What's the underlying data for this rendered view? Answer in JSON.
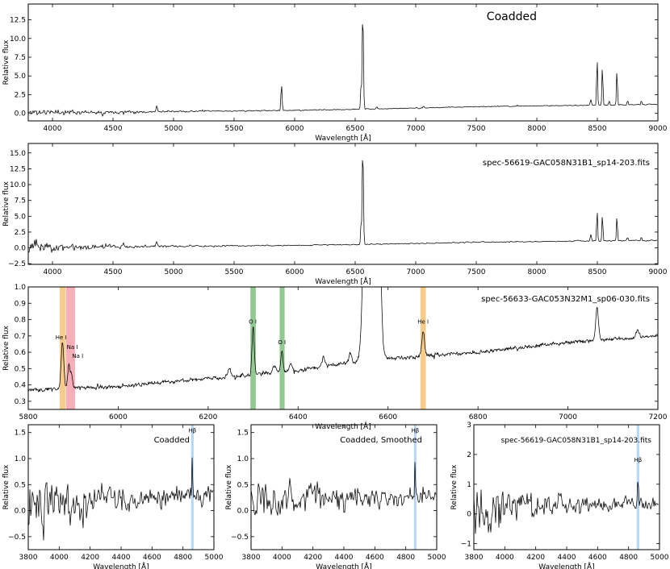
{
  "figure": {
    "background": "#ffffff",
    "line_color": "#000000"
  },
  "chart_data": [
    {
      "id": "p1",
      "type": "line",
      "title": "Coadded",
      "xlabel": "Wavelength [Å]",
      "ylabel": "Relative flux",
      "xlim": [
        3800,
        9000
      ],
      "ylim": [
        -1.0,
        14.6
      ],
      "xticks": [
        4000,
        4500,
        5000,
        5500,
        6000,
        6500,
        7000,
        7500,
        8000,
        8500,
        9000
      ],
      "xtick_labels": [
        "4000",
        "4500",
        "5000",
        "5500",
        "6000",
        "6500",
        "7000",
        "7500",
        "8000",
        "8500",
        "9000"
      ],
      "yticks": [
        0.0,
        2.5,
        5.0,
        7.5,
        10.0,
        12.5
      ],
      "ytick_labels": [
        "0.0",
        "2.5",
        "5.0",
        "7.5",
        "10.0",
        "12.5"
      ],
      "continuum": [
        [
          3800,
          0.15
        ],
        [
          4500,
          0.2
        ],
        [
          5000,
          0.25
        ],
        [
          6000,
          0.4
        ],
        [
          6500,
          0.55
        ],
        [
          7000,
          0.7
        ],
        [
          7500,
          0.9
        ],
        [
          8000,
          1.0
        ],
        [
          8500,
          1.1
        ],
        [
          9000,
          1.2
        ]
      ],
      "noise": [
        [
          3800,
          0.45
        ],
        [
          4200,
          0.3
        ],
        [
          4800,
          0.15
        ],
        [
          5500,
          0.07
        ],
        [
          7000,
          0.05
        ],
        [
          9000,
          0.06
        ]
      ],
      "lines": [
        [
          4861,
          0.8,
          6
        ],
        [
          5890,
          3.2,
          4
        ],
        [
          5896,
          1.5,
          3
        ],
        [
          6563,
          13.5,
          5
        ],
        [
          6548,
          3.0,
          4
        ],
        [
          6678,
          0.3,
          4
        ],
        [
          7065,
          0.3,
          5
        ],
        [
          8446,
          0.8,
          5
        ],
        [
          8498,
          6.5,
          4
        ],
        [
          8542,
          5.3,
          4
        ],
        [
          8598,
          0.6,
          4
        ],
        [
          8662,
          4.8,
          4
        ],
        [
          8750,
          0.6,
          4
        ],
        [
          8863,
          0.6,
          4
        ]
      ],
      "seed": 11,
      "step": 1.0
    },
    {
      "id": "p2",
      "type": "line",
      "title": "spec-56619-GAC058N31B1_sp14-203.fits",
      "xlabel": "Wavelength [Å]",
      "ylabel": "Relative flux",
      "xlim": [
        3800,
        9000
      ],
      "ylim": [
        -2.6,
        16.5
      ],
      "xticks": [
        4000,
        4500,
        5000,
        5500,
        6000,
        6500,
        7000,
        7500,
        8000,
        8500,
        9000
      ],
      "xtick_labels": [
        "4000",
        "4500",
        "5000",
        "5500",
        "6000",
        "6500",
        "7000",
        "7500",
        "8000",
        "8500",
        "9000"
      ],
      "yticks": [
        -2.5,
        0.0,
        2.5,
        5.0,
        7.5,
        10.0,
        12.5,
        15.0
      ],
      "ytick_labels": [
        "−2.5",
        "0.0",
        "2.5",
        "5.0",
        "7.5",
        "10.0",
        "12.5",
        "15.0"
      ],
      "continuum": [
        [
          3800,
          0.15
        ],
        [
          4500,
          0.2
        ],
        [
          5000,
          0.25
        ],
        [
          6000,
          0.4
        ],
        [
          6500,
          0.55
        ],
        [
          7000,
          0.7
        ],
        [
          7500,
          0.9
        ],
        [
          8000,
          1.0
        ],
        [
          8500,
          1.1
        ],
        [
          9000,
          1.2
        ]
      ],
      "noise": [
        [
          3800,
          1.3
        ],
        [
          4000,
          0.8
        ],
        [
          4500,
          0.3
        ],
        [
          5000,
          0.15
        ],
        [
          6000,
          0.08
        ],
        [
          9000,
          0.08
        ]
      ],
      "lines": [
        [
          4861,
          0.8,
          6
        ],
        [
          6563,
          15.8,
          5
        ],
        [
          6548,
          3.0,
          4
        ],
        [
          8446,
          1.0,
          5
        ],
        [
          8498,
          5.0,
          4
        ],
        [
          8542,
          4.3,
          4
        ],
        [
          8662,
          4.0,
          4
        ],
        [
          8750,
          0.6,
          4
        ],
        [
          8863,
          0.6,
          4
        ]
      ],
      "seed": 23,
      "step": 1.0
    },
    {
      "id": "p3",
      "type": "line",
      "title": "spec-56633-GAC053N32M1_sp06-030.fits",
      "xlabel": "Wavelength [Å]",
      "ylabel": "Relative flux",
      "xlim": [
        5800,
        7200
      ],
      "ylim": [
        0.25,
        1.0
      ],
      "xticks": [
        5800,
        6000,
        6200,
        6400,
        6600,
        6800,
        7000,
        7200
      ],
      "xtick_labels": [
        "5800",
        "6000",
        "6200",
        "6400",
        "6600",
        "6800",
        "7000",
        "7200"
      ],
      "yticks": [
        0.3,
        0.4,
        0.5,
        0.6,
        0.7,
        0.8,
        0.9,
        1.0
      ],
      "ytick_labels": [
        "0.3",
        "0.4",
        "0.5",
        "0.6",
        "0.7",
        "0.8",
        "0.9",
        "1.0"
      ],
      "continuum": [
        [
          5800,
          0.37
        ],
        [
          6000,
          0.39
        ],
        [
          6200,
          0.44
        ],
        [
          6400,
          0.49
        ],
        [
          6500,
          0.53
        ],
        [
          6600,
          0.56
        ],
        [
          6800,
          0.6
        ],
        [
          7000,
          0.66
        ],
        [
          7200,
          0.7
        ]
      ],
      "noise": [
        [
          5800,
          0.012
        ],
        [
          7200,
          0.012
        ]
      ],
      "lines": [
        [
          5876,
          0.28,
          3
        ],
        [
          5890,
          0.13,
          2.5
        ],
        [
          5896,
          0.08,
          2.5
        ],
        [
          6300,
          0.3,
          2.5
        ],
        [
          6364,
          0.12,
          2.5
        ],
        [
          6563,
          6.0,
          9
        ],
        [
          6548,
          0.15,
          3
        ],
        [
          6583,
          0.2,
          3
        ],
        [
          6678,
          0.15,
          3
        ],
        [
          7065,
          0.2,
          3
        ],
        [
          6456,
          0.06,
          3
        ],
        [
          6247,
          0.05,
          3
        ],
        [
          6516,
          0.06,
          3
        ],
        [
          6347,
          0.04,
          3
        ],
        [
          6384,
          0.05,
          3
        ],
        [
          7155,
          0.04,
          3
        ]
      ],
      "bands": [
        {
          "x0": 5870,
          "x1": 5883,
          "color": "#f6c276"
        },
        {
          "x0": 5884,
          "x1": 5904,
          "color": "#f4a0ad"
        },
        {
          "x0": 6294,
          "x1": 6306,
          "color": "#7fbf7f"
        },
        {
          "x0": 6359,
          "x1": 6370,
          "color": "#7fbf7f"
        },
        {
          "x0": 6672,
          "x1": 6684,
          "color": "#f6c276"
        }
      ],
      "annotations": [
        {
          "text": "He I",
          "x": 5873,
          "y": 0.68
        },
        {
          "text": "Na I",
          "x": 5898,
          "y": 0.62
        },
        {
          "text": "Na I",
          "x": 5910,
          "y": 0.565
        },
        {
          "text": "O I",
          "x": 6299,
          "y": 0.775
        },
        {
          "text": "O I",
          "x": 6364,
          "y": 0.65
        },
        {
          "text": "He I",
          "x": 6678,
          "y": 0.775
        }
      ],
      "seed": 37,
      "step": 0.6
    },
    {
      "id": "p4",
      "type": "line",
      "title": "Coadded",
      "xlabel": "Wavelength [Å]",
      "ylabel": "Relative flux",
      "xlim": [
        3800,
        5000
      ],
      "ylim": [
        -0.75,
        1.65
      ],
      "xticks": [
        3800,
        4000,
        4200,
        4400,
        4600,
        4800,
        5000
      ],
      "xtick_labels": [
        "3800",
        "4000",
        "4200",
        "4400",
        "4600",
        "4800",
        "5000"
      ],
      "yticks": [
        -0.5,
        0.0,
        0.5,
        1.0,
        1.5
      ],
      "ytick_labels": [
        "−0.5",
        "0.0",
        "0.5",
        "1.0",
        "1.5"
      ],
      "continuum": [
        [
          3800,
          0.18
        ],
        [
          5000,
          0.28
        ]
      ],
      "noise": [
        [
          3800,
          0.6
        ],
        [
          4000,
          0.45
        ],
        [
          4300,
          0.28
        ],
        [
          4600,
          0.2
        ],
        [
          5000,
          0.15
        ]
      ],
      "lines": [
        [
          4861,
          1.1,
          2
        ]
      ],
      "bands": [
        {
          "x0": 4853,
          "x1": 4869,
          "color": "#a8d0f2"
        }
      ],
      "annotations": [
        {
          "text": "Hβ",
          "x": 4861,
          "y": 1.5
        }
      ],
      "seed": 51,
      "step": 1.0
    },
    {
      "id": "p5",
      "type": "line",
      "title": "Coadded, Smoothed",
      "xlabel": "Wavelength [Å]",
      "ylabel": "Relative flux",
      "xlim": [
        3800,
        5000
      ],
      "ylim": [
        -0.75,
        1.65
      ],
      "xticks": [
        3800,
        4000,
        4200,
        4400,
        4600,
        4800,
        5000
      ],
      "xtick_labels": [
        "3800",
        "4000",
        "4200",
        "4400",
        "4600",
        "4800",
        "5000"
      ],
      "yticks": [
        -0.5,
        0.0,
        0.5,
        1.0,
        1.5
      ],
      "ytick_labels": [
        "−0.5",
        "0.0",
        "0.5",
        "1.0",
        "1.5"
      ],
      "continuum": [
        [
          3800,
          0.18
        ],
        [
          5000,
          0.28
        ]
      ],
      "noise": [
        [
          3800,
          0.5
        ],
        [
          4000,
          0.38
        ],
        [
          4300,
          0.24
        ],
        [
          4600,
          0.17
        ],
        [
          5000,
          0.13
        ]
      ],
      "lines": [
        [
          4861,
          1.0,
          2
        ]
      ],
      "bands": [
        {
          "x0": 4853,
          "x1": 4869,
          "color": "#a8d0f2"
        }
      ],
      "annotations": [
        {
          "text": "Hβ",
          "x": 4861,
          "y": 1.5
        }
      ],
      "seed": 67,
      "step": 1.0
    },
    {
      "id": "p6",
      "type": "line",
      "title": "spec-56619-GAC058N31B1_sp14-203.fits",
      "xlabel": "Wavelength [Å]",
      "ylabel": "Relative flux",
      "xlim": [
        3800,
        5000
      ],
      "ylim": [
        -1.2,
        3.0
      ],
      "xticks": [
        3800,
        4000,
        4200,
        4400,
        4600,
        4800,
        5000
      ],
      "xtick_labels": [
        "3800",
        "4000",
        "4200",
        "4400",
        "4600",
        "4800",
        "5000"
      ],
      "yticks": [
        -1,
        0,
        1,
        2,
        3
      ],
      "ytick_labels": [
        "−1",
        "0",
        "1",
        "2",
        "3"
      ],
      "continuum": [
        [
          3800,
          0.25
        ],
        [
          5000,
          0.35
        ]
      ],
      "noise": [
        [
          3800,
          1.3
        ],
        [
          3900,
          0.9
        ],
        [
          4100,
          0.55
        ],
        [
          4400,
          0.32
        ],
        [
          4700,
          0.22
        ],
        [
          5000,
          0.18
        ]
      ],
      "lines": [
        [
          4861,
          0.85,
          2.5
        ]
      ],
      "bands": [
        {
          "x0": 4853,
          "x1": 4869,
          "color": "#a8d0f2"
        }
      ],
      "annotations": [
        {
          "text": "Hβ",
          "x": 4861,
          "y": 1.75
        }
      ],
      "seed": 79,
      "step": 1.0
    }
  ]
}
